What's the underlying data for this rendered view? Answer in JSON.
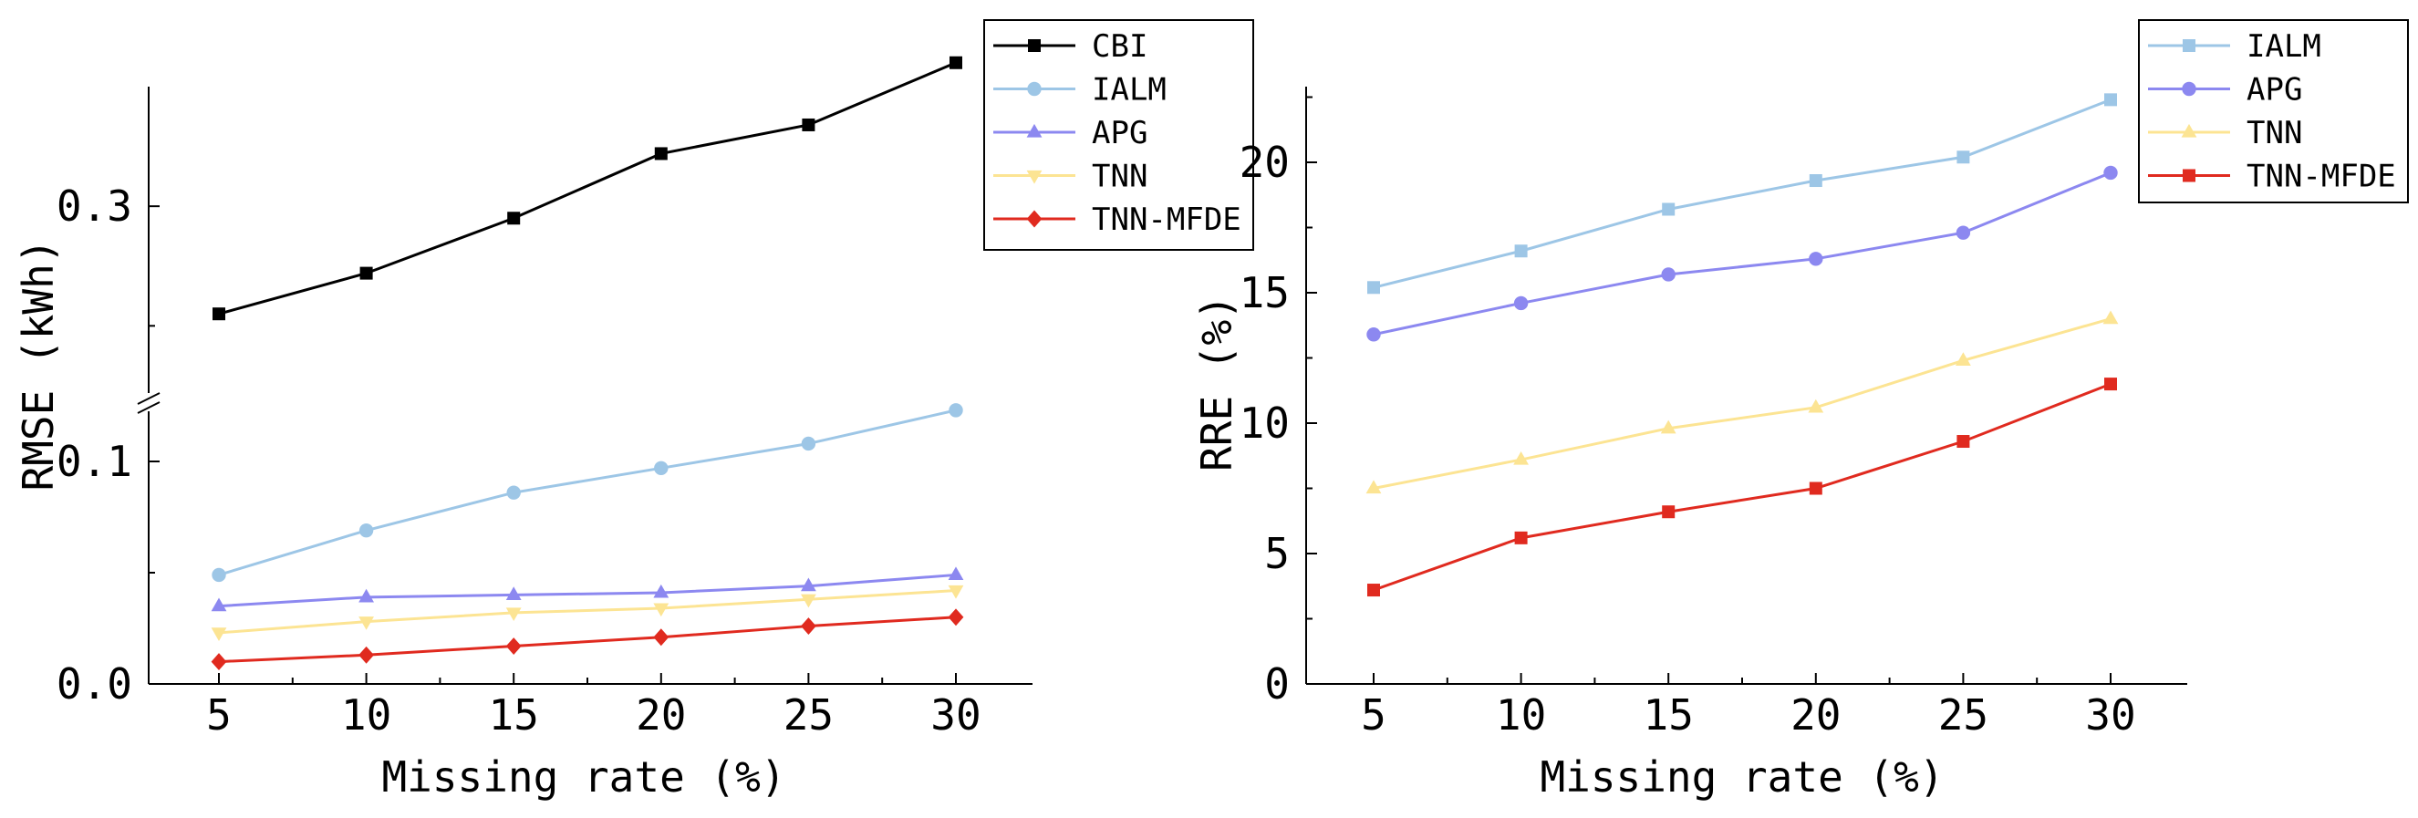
{
  "chart_data": [
    {
      "type": "line",
      "xlabel": "Missing rate (%)",
      "ylabel": "RMSE (kWh)",
      "x": [
        5,
        10,
        15,
        20,
        25,
        30
      ],
      "x_tick_labels": [
        "5",
        "10",
        "15",
        "20",
        "25",
        "30"
      ],
      "y_axis_break": [
        0.125,
        0.22
      ],
      "y_ticks": [
        0.0,
        0.1,
        0.3
      ],
      "y_tick_labels": [
        "0.0",
        "0.1",
        "0.3"
      ],
      "ylim_lower": [
        0.0,
        0.125
      ],
      "ylim_upper": [
        0.22,
        0.35
      ],
      "legend_position": "top-right",
      "series": [
        {
          "name": "CBI",
          "color": "#000000",
          "marker": "square",
          "values": [
            0.255,
            0.272,
            0.295,
            0.322,
            0.334,
            0.36
          ]
        },
        {
          "name": "IALM",
          "color": "#9dc6e6",
          "marker": "circle",
          "values": [
            0.049,
            0.069,
            0.086,
            0.097,
            0.108,
            0.123
          ]
        },
        {
          "name": "APG",
          "color": "#8c88f0",
          "marker": "triangle-up",
          "values": [
            0.035,
            0.039,
            0.04,
            0.041,
            0.044,
            0.049
          ]
        },
        {
          "name": "TNN",
          "color": "#fce493",
          "marker": "triangle-down",
          "values": [
            0.023,
            0.028,
            0.032,
            0.034,
            0.038,
            0.042
          ]
        },
        {
          "name": "TNN-MFDE",
          "color": "#e02a1f",
          "marker": "diamond",
          "values": [
            0.01,
            0.013,
            0.017,
            0.021,
            0.026,
            0.03
          ]
        }
      ]
    },
    {
      "type": "line",
      "xlabel": "Missing rate (%)",
      "ylabel": "RRE (%)",
      "x": [
        5,
        10,
        15,
        20,
        25,
        30
      ],
      "x_tick_labels": [
        "5",
        "10",
        "15",
        "20",
        "25",
        "30"
      ],
      "y_ticks": [
        0,
        5,
        10,
        15,
        20
      ],
      "y_tick_labels": [
        "0",
        "5",
        "10",
        "15",
        "20"
      ],
      "ylim": [
        0,
        23
      ],
      "legend_position": "top-right",
      "series": [
        {
          "name": "IALM",
          "color": "#9dc6e6",
          "marker": "square",
          "values": [
            15.2,
            16.6,
            18.2,
            19.3,
            20.2,
            22.4
          ]
        },
        {
          "name": "APG",
          "color": "#8c88f0",
          "marker": "circle",
          "values": [
            13.4,
            14.6,
            15.7,
            16.3,
            17.3,
            19.6
          ]
        },
        {
          "name": "TNN",
          "color": "#fce493",
          "marker": "triangle-up",
          "values": [
            7.5,
            8.6,
            9.8,
            10.6,
            12.4,
            14.0
          ]
        },
        {
          "name": "TNN-MFDE",
          "color": "#e02a1f",
          "marker": "square",
          "values": [
            3.6,
            5.6,
            6.6,
            7.5,
            9.3,
            11.5
          ]
        }
      ]
    }
  ]
}
